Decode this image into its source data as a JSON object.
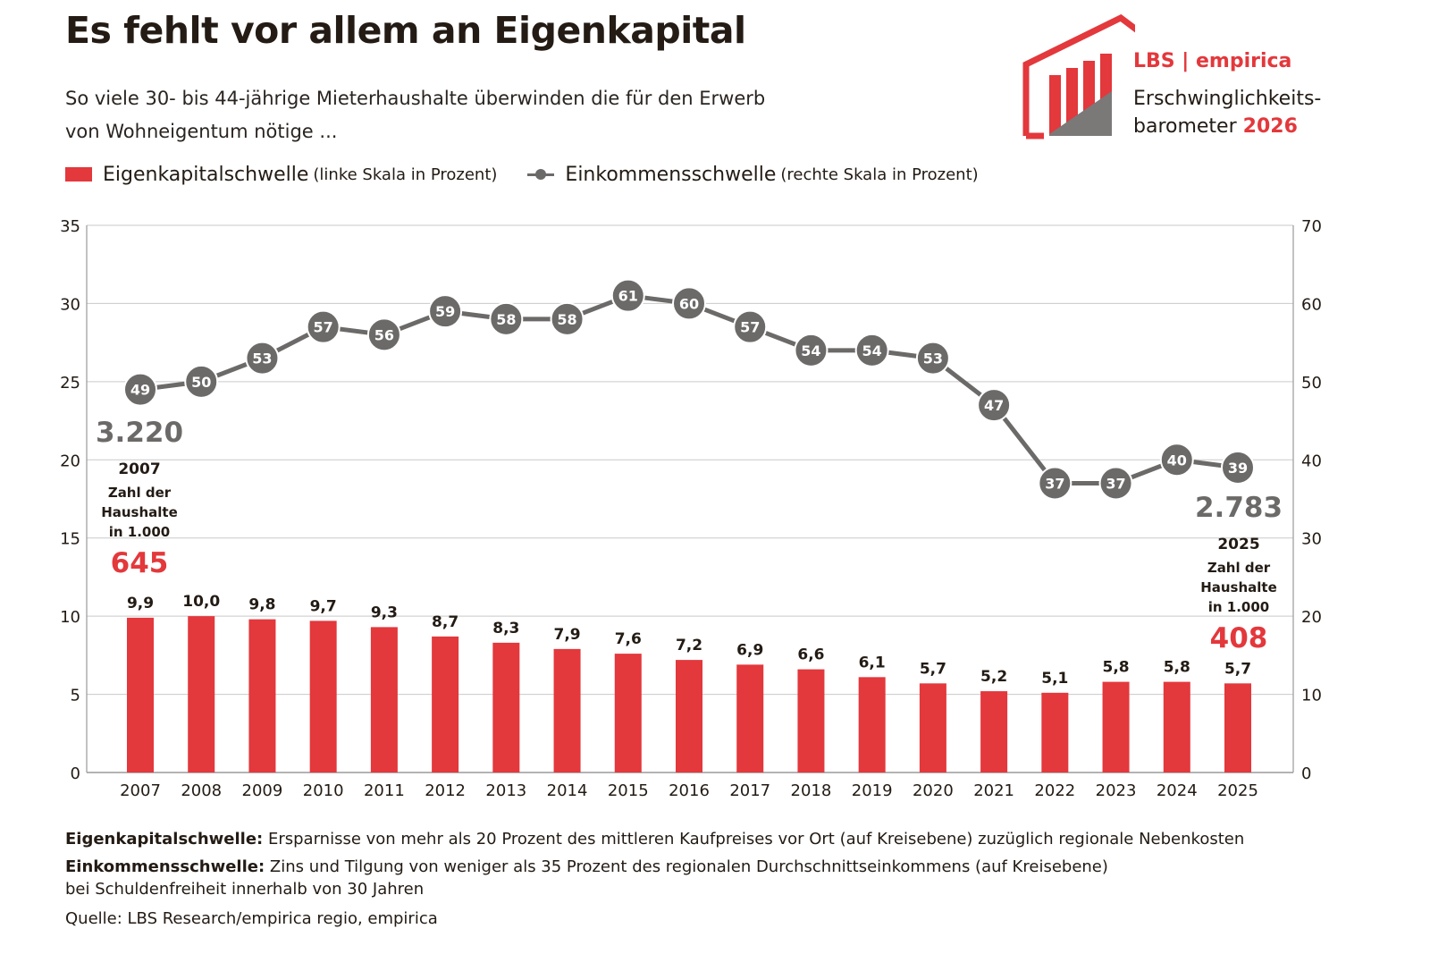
{
  "header": {
    "title": "Es fehlt vor allem an Eigenkapital",
    "subtitle_line1": "So viele 30- bis 44-jährige Mieterhaushalte überwinden die für den Erwerb",
    "subtitle_line2": "von Wohneigentum nötige ..."
  },
  "legend": {
    "bar_label": "Eigenkapitalschwelle",
    "bar_note": "(linke Skala in Prozent)",
    "line_label": "Einkommensschwelle",
    "line_note": "(rechte Skala in Prozent)"
  },
  "logo": {
    "brand": "LBS | empirica",
    "line1": "Erschwinglichkeits-",
    "line2_text": "barometer",
    "line2_year": "2026"
  },
  "colors": {
    "bar": "#e3383c",
    "line": "#6c6a69",
    "highlight_red": "#e3383c",
    "highlight_gray": "#6c6a69",
    "grid": "#c9c9c9"
  },
  "annotations": {
    "start": {
      "total": "3.220",
      "year": "2007",
      "label_line1": "Zahl der",
      "label_line2": "Haushalte",
      "label_line3": "in 1.000",
      "value": "645"
    },
    "end": {
      "total": "2.783",
      "year": "2025",
      "label_line1": "Zahl der",
      "label_line2": "Haushalte",
      "label_line3": "in 1.000",
      "value": "408"
    }
  },
  "chart_data": {
    "type": "bar",
    "categories": [
      "2007",
      "2008",
      "2009",
      "2010",
      "2011",
      "2012",
      "2013",
      "2014",
      "2015",
      "2016",
      "2017",
      "2018",
      "2019",
      "2020",
      "2021",
      "2022",
      "2023",
      "2024",
      "2025"
    ],
    "series": [
      {
        "name": "Eigenkapitalschwelle",
        "type": "bar",
        "axis": "left",
        "values": [
          9.9,
          10.0,
          9.8,
          9.7,
          9.3,
          8.7,
          8.3,
          7.9,
          7.6,
          7.2,
          6.9,
          6.6,
          6.1,
          5.7,
          5.2,
          5.1,
          5.8,
          5.8,
          5.7
        ],
        "labels": [
          "9,9",
          "10,0",
          "9,8",
          "9,7",
          "9,3",
          "8,7",
          "8,3",
          "7,9",
          "7,6",
          "7,2",
          "6,9",
          "6,6",
          "6,1",
          "5,7",
          "5,2",
          "5,1",
          "5,8",
          "5,8",
          "5,7"
        ]
      },
      {
        "name": "Einkommensschwelle",
        "type": "line",
        "axis": "right",
        "values": [
          49,
          50,
          53,
          57,
          56,
          59,
          58,
          58,
          61,
          60,
          57,
          54,
          54,
          53,
          47,
          37,
          37,
          40,
          39
        ],
        "labels": [
          "49",
          "50",
          "53",
          "57",
          "56",
          "59",
          "58",
          "58",
          "61",
          "60",
          "57",
          "54",
          "54",
          "53",
          "47",
          "37",
          "37",
          "40",
          "39"
        ]
      }
    ],
    "left_axis": {
      "ylim": [
        0,
        35
      ],
      "ticks": [
        "0",
        "5",
        "10",
        "15",
        "20",
        "25",
        "30",
        "35"
      ]
    },
    "right_axis": {
      "ylim": [
        0,
        70
      ],
      "ticks": [
        "0",
        "10",
        "20",
        "30",
        "40",
        "50",
        "60",
        "70"
      ]
    },
    "grid": true,
    "legend_position": "top-left"
  },
  "footer": {
    "def1_term": "Eigenkapitalschwelle:",
    "def1_text": "Ersparnisse von mehr als 20 Prozent des mittleren Kaufpreises vor Ort (auf Kreisebene) zuzüglich regionale Nebenkosten",
    "def2_term": "Einkommensschwelle:",
    "def2_text": "Zins und Tilgung von weniger als 35 Prozent des regionalen Durchschnittseinkommens (auf Kreisebene)",
    "def2_text_line2": "bei Schuldenfreiheit innerhalb von 30 Jahren",
    "source": "Quelle: LBS Research/empirica regio, empirica"
  }
}
